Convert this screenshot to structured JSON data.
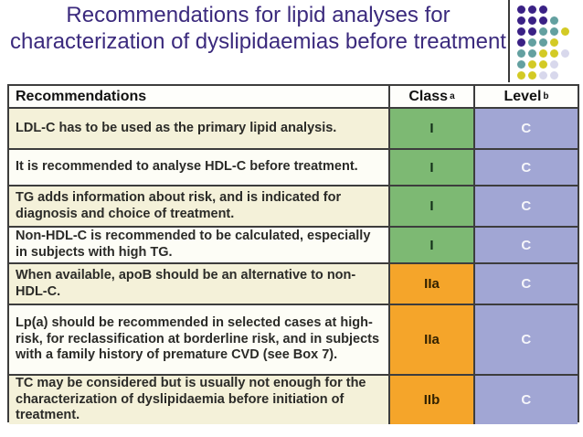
{
  "slide": {
    "title": "Recommendations for lipid analyses for characterization of dyslipidaemias before treatment",
    "title_color": "#3b2a7d"
  },
  "decoration": {
    "divider_color": "#3a3a3a",
    "dot_colors": {
      "P": "#3a2185",
      "T": "#63a0a0",
      "Y": "#d3ca25",
      "L": "#d8d8ec"
    },
    "dot_rows": [
      "PPP",
      "PPPT",
      "PPTTY",
      "PTTY",
      "TTYYL",
      "TYYL",
      "YYLL"
    ]
  },
  "table": {
    "headers": {
      "recommendations": "Recommendations",
      "class": "Class",
      "class_note_marker": "a",
      "level": "Level",
      "level_note_marker": "b"
    },
    "colors": {
      "row_cream": "#f4f1d9",
      "row_white": "#fdfdf6",
      "class_green": "#7db973",
      "class_orange": "#f5a52a",
      "level_blue": "#a1a6d4",
      "border": "#3d3d3d"
    },
    "rows": [
      {
        "text": "LDL-C has to be used as the primary lipid analysis.",
        "class": "I",
        "level": "C",
        "row_bg": "cream",
        "class_color": "green"
      },
      {
        "text": "It is recommended to analyse HDL-C before treatment.",
        "class": "I",
        "level": "C",
        "row_bg": "white",
        "class_color": "green"
      },
      {
        "text": "TG adds information about risk, and is indicated for diagnosis and choice of treatment.",
        "class": "I",
        "level": "C",
        "row_bg": "cream",
        "class_color": "green"
      },
      {
        "text": "Non-HDL-C is recommended to be calculated, especially in subjects with high TG.",
        "class": "I",
        "level": "C",
        "row_bg": "white",
        "class_color": "green"
      },
      {
        "text": "When available, apoB should be an alternative to non-HDL-C.",
        "class": "IIa",
        "level": "C",
        "row_bg": "cream",
        "class_color": "orange"
      },
      {
        "text_pre": "Lp(a) should be recommended in selected cases at high-risk, for reclassification at borderline risk, and in subjects with a family history of premature CVD ",
        "text_bold": "(see Box 7",
        "text_post": ").",
        "class": "IIa",
        "level": "C",
        "row_bg": "white",
        "class_color": "orange"
      },
      {
        "text": "TC may be considered but is usually not enough for the characterization of dyslipidaemia before initiation of treatment.",
        "class": "IIb",
        "level": "C",
        "row_bg": "cream",
        "class_color": "orange"
      }
    ]
  }
}
